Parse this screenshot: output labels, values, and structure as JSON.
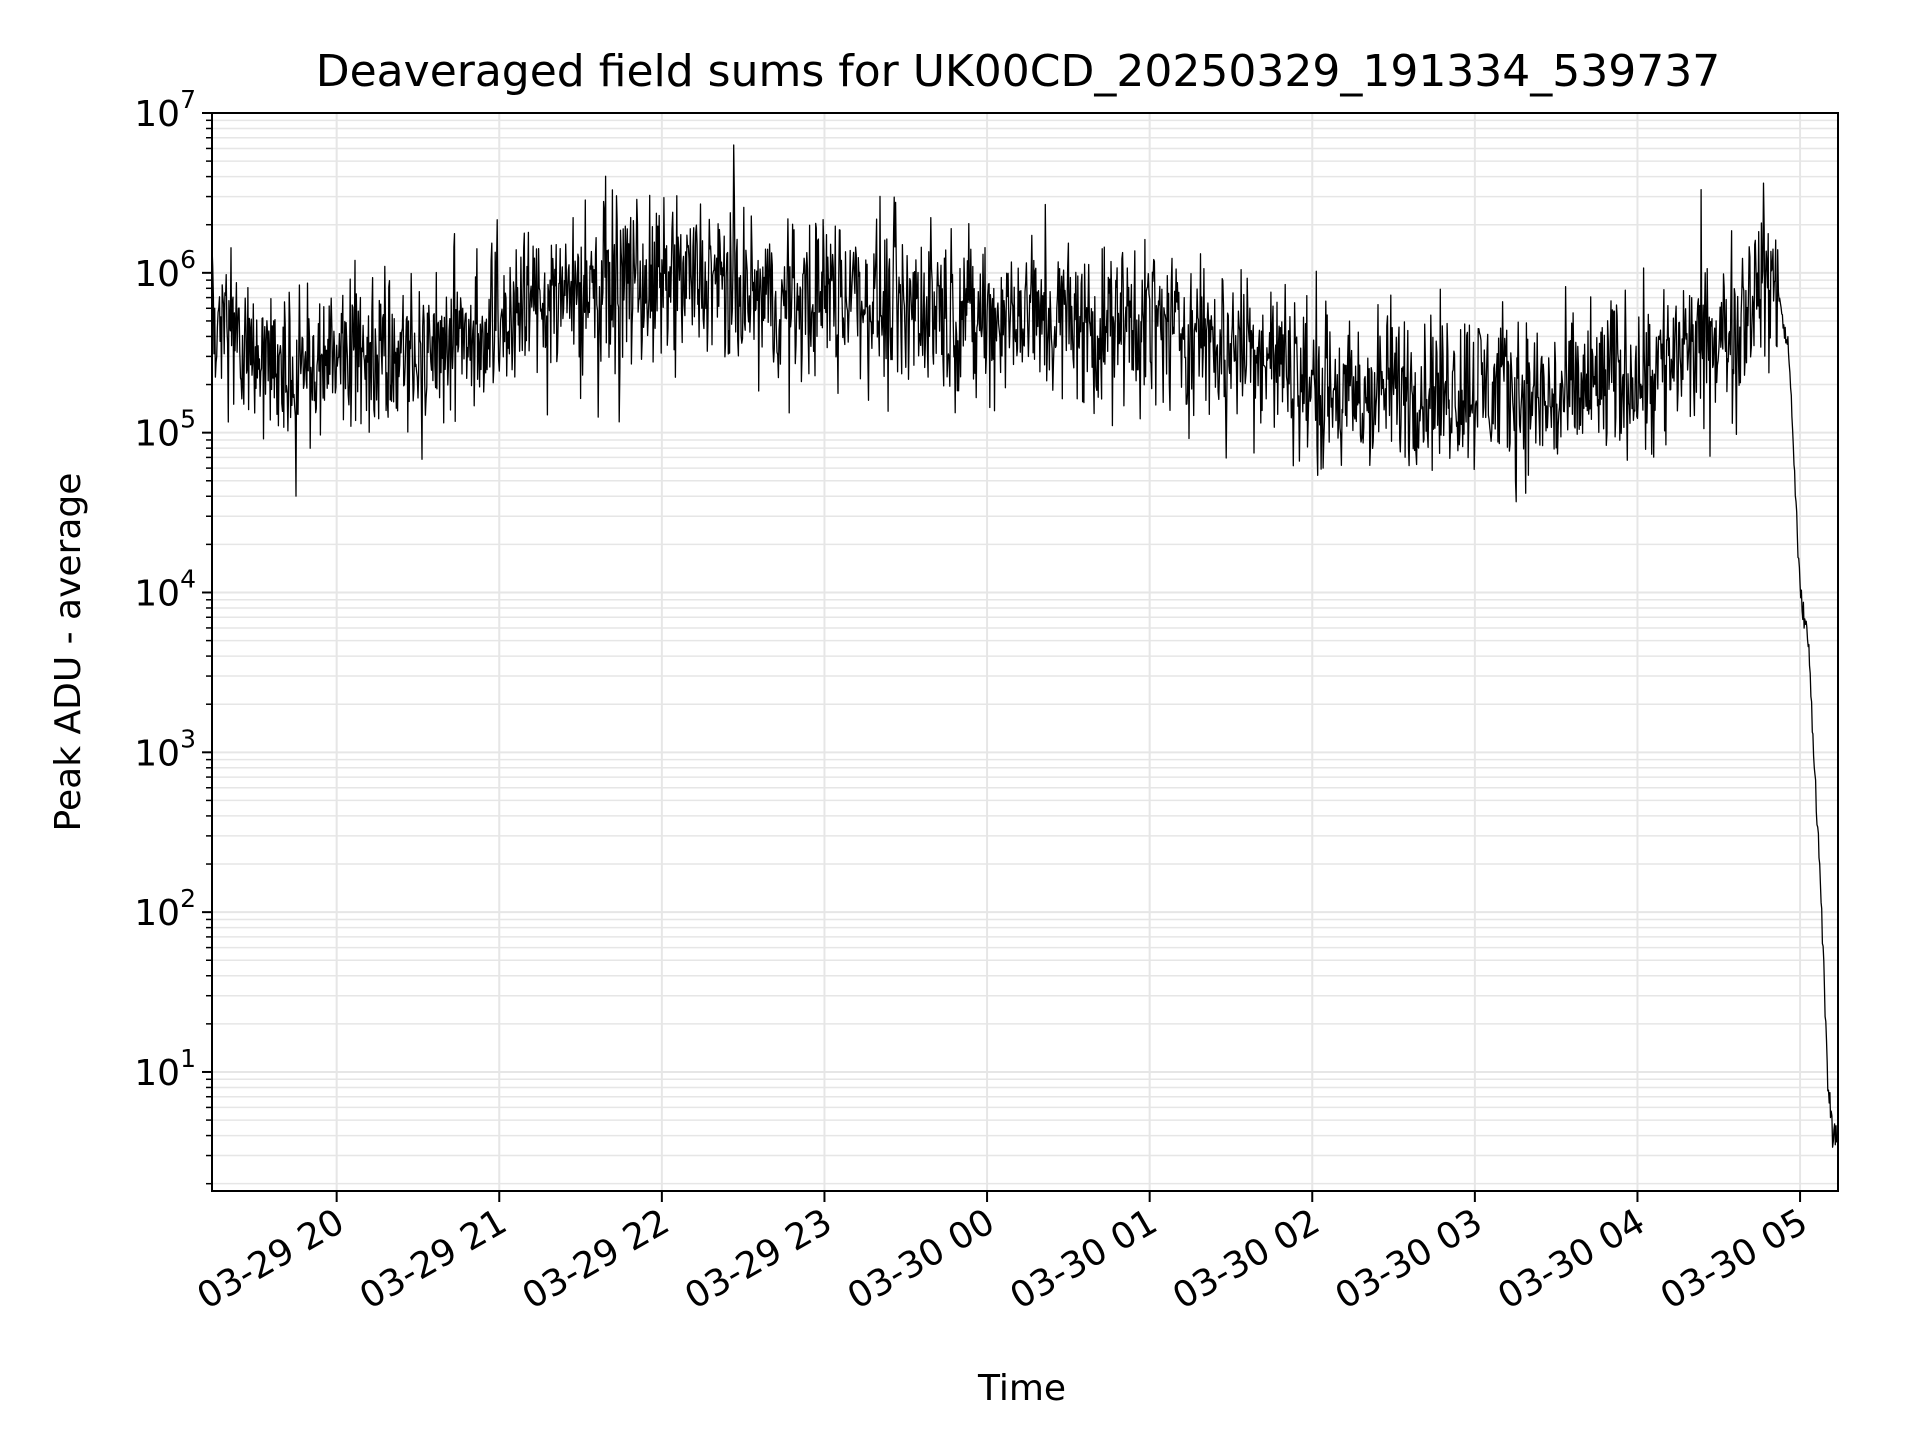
{
  "chart_data": {
    "type": "line",
    "title": "Deaveraged field sums for UK00CD_20250329_191334_539737",
    "xlabel": "Time",
    "ylabel": "Peak ADU - average",
    "y_scale": "log",
    "ylim": [
      1.8,
      10000000
    ],
    "xlim": [
      "2025-03-29 19:14",
      "2025-03-30 05:14"
    ],
    "x_ticks": [
      "03-29 20",
      "03-29 21",
      "03-29 22",
      "03-29 23",
      "03-30 00",
      "03-30 01",
      "03-30 02",
      "03-30 03",
      "03-30 04",
      "03-30 05"
    ],
    "y_ticks": [
      {
        "base": "10",
        "exp": "1"
      },
      {
        "base": "10",
        "exp": "2"
      },
      {
        "base": "10",
        "exp": "3"
      },
      {
        "base": "10",
        "exp": "4"
      },
      {
        "base": "10",
        "exp": "5"
      },
      {
        "base": "10",
        "exp": "6"
      },
      {
        "base": "10",
        "exp": "7"
      }
    ],
    "grid": true,
    "line_color": "#000000",
    "grid_color": "#e6e6e6",
    "series": [
      {
        "x": [
          "2025-03-29 19:14",
          "2025-03-29 19:30",
          "2025-03-29 19:45",
          "2025-03-29 20:00",
          "2025-03-29 20:15",
          "2025-03-29 20:30",
          "2025-03-29 20:45",
          "2025-03-29 21:00",
          "2025-03-29 21:15",
          "2025-03-29 21:30",
          "2025-03-29 21:45",
          "2025-03-29 22:00",
          "2025-03-29 22:15",
          "2025-03-29 22:30",
          "2025-03-29 22:45",
          "2025-03-29 23:00",
          "2025-03-29 23:15",
          "2025-03-29 23:30",
          "2025-03-29 23:45",
          "2025-03-30 00:00",
          "2025-03-30 00:15",
          "2025-03-30 00:30",
          "2025-03-30 00:45",
          "2025-03-30 01:00",
          "2025-03-30 01:15",
          "2025-03-30 01:30",
          "2025-03-30 01:45",
          "2025-03-30 02:00",
          "2025-03-30 02:15",
          "2025-03-30 02:30",
          "2025-03-30 02:45",
          "2025-03-30 03:00",
          "2025-03-30 03:15",
          "2025-03-30 03:30",
          "2025-03-30 03:45",
          "2025-03-30 04:00",
          "2025-03-30 04:15",
          "2025-03-30 04:30",
          "2025-03-30 04:45",
          "2025-03-30 04:52",
          "2025-03-30 04:56",
          "2025-03-30 05:00",
          "2025-03-30 05:03",
          "2025-03-30 05:06",
          "2025-03-30 05:08",
          "2025-03-30 05:10",
          "2025-03-30 05:12",
          "2025-03-30 05:14"
        ],
        "values": [
          500000,
          300000,
          250000,
          300000,
          350000,
          300000,
          400000,
          500000,
          700000,
          800000,
          900000,
          800000,
          900000,
          700000,
          600000,
          800000,
          700000,
          650000,
          600000,
          500000,
          550000,
          500000,
          450000,
          500000,
          400000,
          350000,
          300000,
          200000,
          150000,
          200000,
          180000,
          200000,
          180000,
          150000,
          200000,
          250000,
          300000,
          350000,
          900000,
          800000,
          300000,
          10000,
          5000,
          500,
          100,
          10,
          4,
          4
        ]
      }
    ]
  }
}
